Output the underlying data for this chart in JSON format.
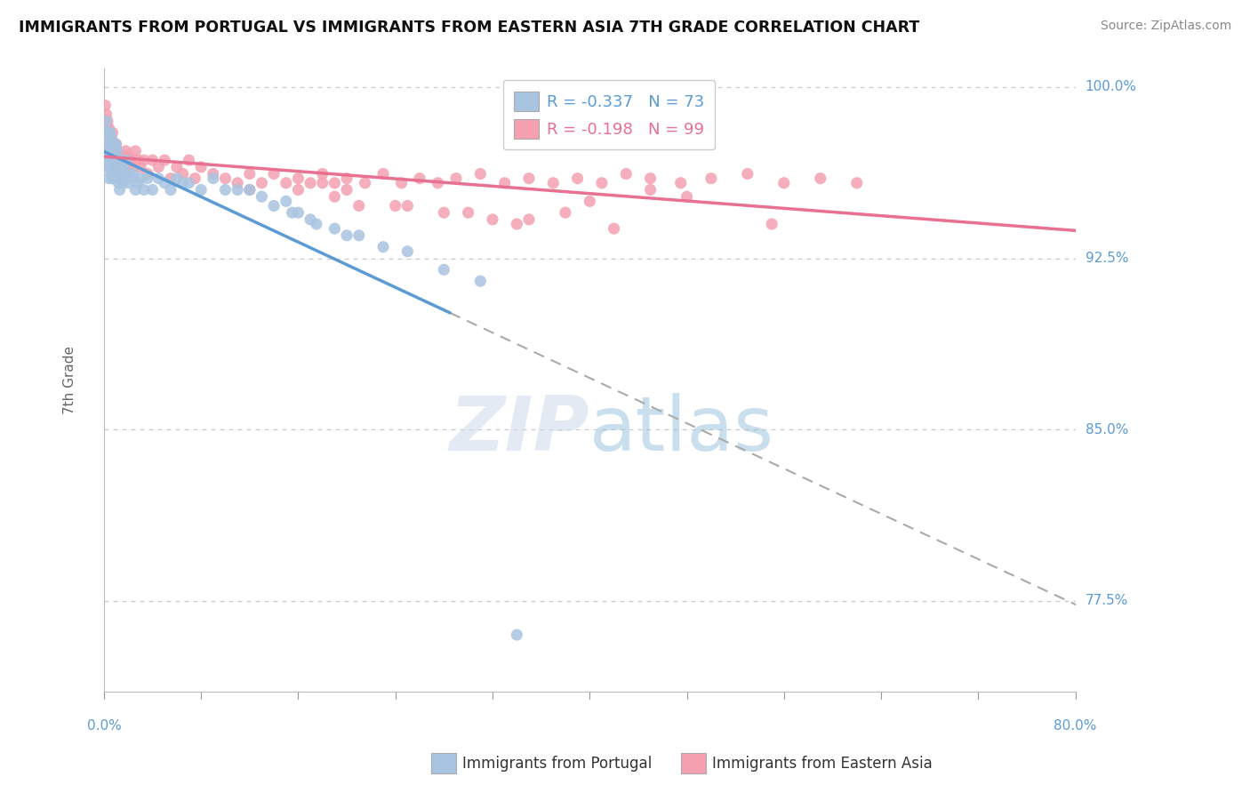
{
  "title": "IMMIGRANTS FROM PORTUGAL VS IMMIGRANTS FROM EASTERN ASIA 7TH GRADE CORRELATION CHART",
  "source": "Source: ZipAtlas.com",
  "ylabel": "7th Grade",
  "xlim": [
    0.0,
    0.8
  ],
  "ylim": [
    0.735,
    1.008
  ],
  "R_portugal": -0.337,
  "N_portugal": 73,
  "R_eastern_asia": -0.198,
  "N_eastern_asia": 99,
  "color_portugal": "#a8c4e0",
  "color_eastern_asia": "#f4a0b0",
  "trend_portugal": "#5b9bd5",
  "trend_eastern_asia": "#e87090",
  "yticks": [
    1.0,
    0.925,
    0.85,
    0.775
  ],
  "ytick_labels": [
    "100.0%",
    "92.5%",
    "85.0%",
    "77.5%"
  ],
  "portugal_scatter_x": [
    0.001,
    0.001,
    0.002,
    0.002,
    0.003,
    0.003,
    0.003,
    0.004,
    0.004,
    0.004,
    0.005,
    0.005,
    0.005,
    0.006,
    0.006,
    0.006,
    0.007,
    0.007,
    0.007,
    0.008,
    0.008,
    0.008,
    0.009,
    0.009,
    0.01,
    0.01,
    0.011,
    0.011,
    0.012,
    0.012,
    0.013,
    0.013,
    0.014,
    0.015,
    0.016,
    0.017,
    0.018,
    0.019,
    0.02,
    0.022,
    0.024,
    0.026,
    0.028,
    0.03,
    0.033,
    0.036,
    0.04,
    0.045,
    0.05,
    0.055,
    0.06,
    0.07,
    0.08,
    0.09,
    0.1,
    0.11,
    0.12,
    0.13,
    0.14,
    0.155,
    0.17,
    0.19,
    0.21,
    0.23,
    0.25,
    0.28,
    0.31,
    0.15,
    0.16,
    0.175,
    0.2,
    0.065,
    0.34
  ],
  "portugal_scatter_y": [
    0.98,
    0.975,
    0.985,
    0.97,
    0.98,
    0.972,
    0.965,
    0.975,
    0.968,
    0.96,
    0.98,
    0.97,
    0.965,
    0.978,
    0.972,
    0.962,
    0.975,
    0.968,
    0.96,
    0.975,
    0.968,
    0.96,
    0.97,
    0.962,
    0.975,
    0.965,
    0.972,
    0.962,
    0.968,
    0.958,
    0.965,
    0.955,
    0.96,
    0.958,
    0.965,
    0.96,
    0.968,
    0.962,
    0.958,
    0.96,
    0.962,
    0.955,
    0.958,
    0.96,
    0.955,
    0.96,
    0.955,
    0.96,
    0.958,
    0.955,
    0.96,
    0.958,
    0.955,
    0.96,
    0.955,
    0.955,
    0.955,
    0.952,
    0.948,
    0.945,
    0.942,
    0.938,
    0.935,
    0.93,
    0.928,
    0.92,
    0.915,
    0.95,
    0.945,
    0.94,
    0.935,
    0.958,
    0.76
  ],
  "eastern_asia_scatter_x": [
    0.001,
    0.001,
    0.002,
    0.002,
    0.003,
    0.003,
    0.004,
    0.004,
    0.005,
    0.005,
    0.006,
    0.006,
    0.007,
    0.007,
    0.008,
    0.008,
    0.009,
    0.009,
    0.01,
    0.01,
    0.011,
    0.011,
    0.012,
    0.012,
    0.013,
    0.014,
    0.015,
    0.016,
    0.017,
    0.018,
    0.019,
    0.02,
    0.022,
    0.024,
    0.026,
    0.028,
    0.03,
    0.033,
    0.036,
    0.04,
    0.045,
    0.05,
    0.055,
    0.06,
    0.065,
    0.07,
    0.075,
    0.08,
    0.09,
    0.1,
    0.11,
    0.12,
    0.13,
    0.14,
    0.15,
    0.16,
    0.17,
    0.18,
    0.19,
    0.2,
    0.215,
    0.23,
    0.245,
    0.26,
    0.275,
    0.29,
    0.31,
    0.33,
    0.35,
    0.37,
    0.39,
    0.41,
    0.43,
    0.45,
    0.475,
    0.5,
    0.53,
    0.56,
    0.59,
    0.62,
    0.12,
    0.3,
    0.25,
    0.4,
    0.38,
    0.35,
    0.28,
    0.21,
    0.19,
    0.16,
    0.32,
    0.18,
    0.34,
    0.45,
    0.48,
    0.55,
    0.2,
    0.24,
    0.42
  ],
  "eastern_asia_scatter_y": [
    0.992,
    0.985,
    0.988,
    0.982,
    0.985,
    0.978,
    0.982,
    0.975,
    0.98,
    0.972,
    0.978,
    0.97,
    0.98,
    0.968,
    0.975,
    0.968,
    0.975,
    0.965,
    0.975,
    0.968,
    0.972,
    0.962,
    0.97,
    0.96,
    0.968,
    0.97,
    0.965,
    0.97,
    0.968,
    0.972,
    0.965,
    0.97,
    0.968,
    0.965,
    0.972,
    0.968,
    0.965,
    0.968,
    0.962,
    0.968,
    0.965,
    0.968,
    0.96,
    0.965,
    0.962,
    0.968,
    0.96,
    0.965,
    0.962,
    0.96,
    0.958,
    0.962,
    0.958,
    0.962,
    0.958,
    0.96,
    0.958,
    0.962,
    0.958,
    0.96,
    0.958,
    0.962,
    0.958,
    0.96,
    0.958,
    0.96,
    0.962,
    0.958,
    0.96,
    0.958,
    0.96,
    0.958,
    0.962,
    0.96,
    0.958,
    0.96,
    0.962,
    0.958,
    0.96,
    0.958,
    0.955,
    0.945,
    0.948,
    0.95,
    0.945,
    0.942,
    0.945,
    0.948,
    0.952,
    0.955,
    0.942,
    0.958,
    0.94,
    0.955,
    0.952,
    0.94,
    0.955,
    0.948,
    0.938
  ]
}
